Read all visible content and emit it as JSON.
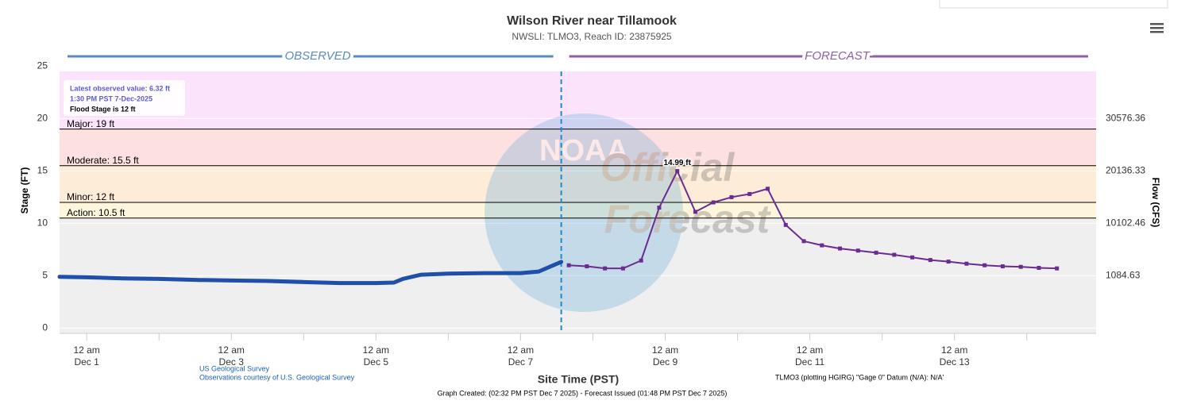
{
  "chart_data": {
    "type": "line",
    "title": "Wilson River near Tillamook",
    "subtitle": "NWSLI: TLMO3, Reach ID: 23875925",
    "y_label": "Stage (FT)",
    "y2_label": "Flow (CFS)",
    "x_label": "Site Time (PST)",
    "observed_label": "OBSERVED",
    "forecast_label": "FORECAST",
    "xlim": [
      "2025-11-30T15:00",
      "2025-12-14T23:00"
    ],
    "xticks": [
      {
        "value": "2025-12-01T00:00",
        "label": "12 am\nDec 1"
      },
      {
        "value": "2025-12-03T00:00",
        "label": "12 am\nDec 3"
      },
      {
        "value": "2025-12-05T00:00",
        "label": "12 am\nDec 5"
      },
      {
        "value": "2025-12-07T00:00",
        "label": "12 am\nDec 7"
      },
      {
        "value": "2025-12-09T00:00",
        "label": "12 am\nDec 9"
      },
      {
        "value": "2025-12-11T00:00",
        "label": "12 am\nDec 11"
      },
      {
        "value": "2025-12-13T00:00",
        "label": "12 am\nDec 13"
      }
    ],
    "xticks_minor": [
      "2025-12-02T00:00",
      "2025-12-04T00:00",
      "2025-12-06T00:00",
      "2025-12-08T00:00",
      "2025-12-10T00:00",
      "2025-12-12T00:00",
      "2025-12-14T00:00"
    ],
    "ylim": [
      -0.5,
      24.5
    ],
    "yticks": [
      0,
      5,
      10,
      15,
      20,
      25
    ],
    "flow_ticks": [
      {
        "value": 30576.36,
        "stage": 20
      },
      {
        "value": 20136.33,
        "stage": 15
      },
      {
        "value": 10102.46,
        "stage": 10
      },
      {
        "value": 1084.63,
        "stage": 5
      }
    ],
    "flood_stages": [
      {
        "label": "Major: 19 ft",
        "value": 19,
        "color": "#fde0e0"
      },
      {
        "label": "Moderate: 15.5 ft",
        "value": 15.5,
        "color": "#fdecd8"
      },
      {
        "label": "Minor: 12 ft",
        "value": 12,
        "color": "#fdf6dc"
      },
      {
        "label": "Action: 10.5 ft",
        "value": 10.5,
        "color": "#fdfde0"
      }
    ],
    "top_band_color": "#fbe4fb",
    "base_band_color": "#efefef",
    "series": [
      {
        "name": "Observed",
        "color": "#1f4fa8",
        "x": [
          "2025-11-30T15:00",
          "2025-12-01T00:00",
          "2025-12-01T12:00",
          "2025-12-02T00:00",
          "2025-12-02T12:00",
          "2025-12-03T00:00",
          "2025-12-03T12:00",
          "2025-12-04T00:00",
          "2025-12-04T12:00",
          "2025-12-05T00:00",
          "2025-12-05T06:00",
          "2025-12-05T09:00",
          "2025-12-05T15:00",
          "2025-12-06T00:00",
          "2025-12-06T12:00",
          "2025-12-07T00:00",
          "2025-12-07T06:00",
          "2025-12-07T13:30"
        ],
        "values": [
          4.9,
          4.85,
          4.75,
          4.7,
          4.6,
          4.55,
          4.5,
          4.4,
          4.3,
          4.3,
          4.35,
          4.7,
          5.1,
          5.2,
          5.25,
          5.25,
          5.4,
          6.32
        ]
      },
      {
        "name": "Forecast",
        "color": "#6a2c91",
        "x": [
          "2025-12-07T16:00",
          "2025-12-07T22:00",
          "2025-12-08T04:00",
          "2025-12-08T10:00",
          "2025-12-08T16:00",
          "2025-12-08T22:00",
          "2025-12-09T04:00",
          "2025-12-09T10:00",
          "2025-12-09T16:00",
          "2025-12-09T22:00",
          "2025-12-10T04:00",
          "2025-12-10T10:00",
          "2025-12-10T16:00",
          "2025-12-10T22:00",
          "2025-12-11T04:00",
          "2025-12-11T10:00",
          "2025-12-11T16:00",
          "2025-12-11T22:00",
          "2025-12-12T04:00",
          "2025-12-12T10:00",
          "2025-12-12T16:00",
          "2025-12-12T22:00",
          "2025-12-13T04:00",
          "2025-12-13T10:00",
          "2025-12-13T16:00",
          "2025-12-13T22:00",
          "2025-12-14T04:00",
          "2025-12-14T10:00"
        ],
        "values": [
          6.0,
          5.9,
          5.7,
          5.7,
          6.45,
          11.5,
          14.99,
          11.1,
          12.0,
          12.5,
          12.8,
          13.3,
          9.85,
          8.3,
          7.9,
          7.6,
          7.4,
          7.2,
          7.0,
          6.75,
          6.5,
          6.35,
          6.15,
          6.0,
          5.9,
          5.85,
          5.75,
          5.7
        ],
        "value_labels": [
          null,
          null,
          null,
          null,
          null,
          null,
          "14.99 ft",
          null,
          null,
          null,
          null,
          null,
          null,
          null,
          null,
          null,
          null,
          null,
          null,
          null,
          null,
          null,
          null,
          null,
          null,
          null,
          null,
          null
        ]
      }
    ],
    "forecast_start": "2025-12-07T13:30",
    "annotation": [
      "Latest observed value: 6.32 ft",
      "1:30 PM PST 7-Dec-2025",
      "Flood Stage is 12 ft"
    ],
    "watermark": [
      "NOAA",
      "Official",
      "Forecast"
    ],
    "source": [
      "US Geological Survey",
      "Observations courtesy of U.S. Geological Survey"
    ],
    "datum_note": "TLMO3 (plotting HGIRG) \"Gage 0\" Datum (N/A): N/A'",
    "footer": "Graph Created: (02:32 PM PST Dec 7 2025) - Forecast Issued (01:48 PM PST Dec 7 2025)"
  }
}
